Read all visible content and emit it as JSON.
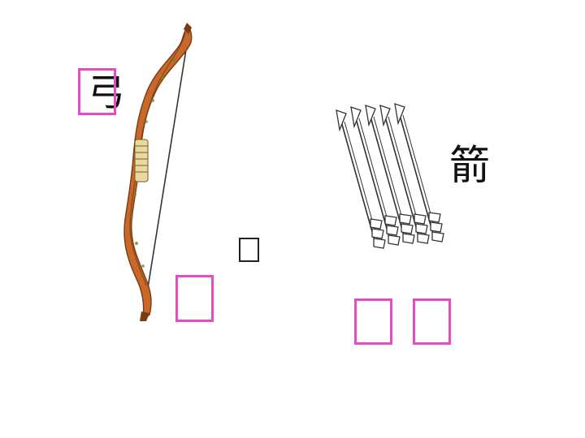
{
  "slide": {
    "bow_char": "弓",
    "arrow_char": "箭"
  },
  "colors": {
    "answer_box": "#e64bc6",
    "bow_wood": "#c8682a",
    "bow_wood_dark": "#7a3a12",
    "bow_grip": "#e8d9a0",
    "arrow_line": "#333333"
  },
  "icons": {
    "bow": "bow-illustration",
    "arrows": "arrows-bundle-illustration"
  }
}
